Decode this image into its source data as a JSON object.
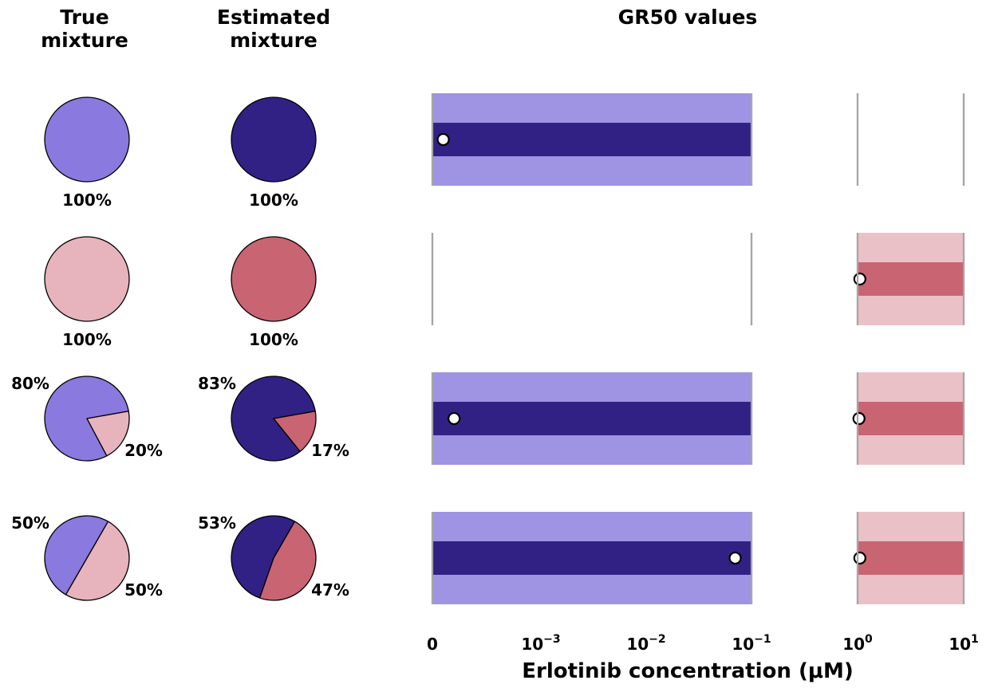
{
  "headers": {
    "true_mixture": [
      "True",
      "mixture"
    ],
    "estimated_mixture": [
      "Estimated",
      "mixture"
    ],
    "gr50": "GR50 values"
  },
  "colors": {
    "cls1_light": "#8a79de",
    "cls1_dark": "#322184",
    "cls1_band": "#9f93e3",
    "cls2_light": "#e7b3bc",
    "cls2_dark": "#c96472",
    "cls2_band": "#ebc1c8",
    "divider": "#a6a6a6"
  },
  "chart_data": {
    "type": "pie+range",
    "xlabel": "Erlotinib concentration (μM)",
    "x_ticks": [
      "0",
      "10^-3",
      "10^-2",
      "10^-1",
      "10^0",
      "10^1"
    ],
    "x_scale": "symlog",
    "rows": [
      {
        "true_mixture": [
          {
            "class": "cls1",
            "pct": 100
          }
        ],
        "true_labels": [
          "100%"
        ],
        "estimated_mixture": [
          {
            "class": "cls1",
            "pct": 100
          }
        ],
        "estimated_labels": [
          "100%"
        ],
        "gr50": [
          {
            "class": "cls1",
            "low": 0,
            "high": 0.1,
            "estimate": 0.0001
          }
        ]
      },
      {
        "true_mixture": [
          {
            "class": "cls2",
            "pct": 100
          }
        ],
        "true_labels": [
          "100%"
        ],
        "estimated_mixture": [
          {
            "class": "cls2",
            "pct": 100
          }
        ],
        "estimated_labels": [
          "100%"
        ],
        "gr50": [
          {
            "class": "cls2",
            "low": 1,
            "high": 10,
            "estimate": 1.05
          }
        ]
      },
      {
        "true_mixture": [
          {
            "class": "cls1",
            "pct": 80
          },
          {
            "class": "cls2",
            "pct": 20
          }
        ],
        "true_labels": [
          "80%",
          "20%"
        ],
        "estimated_mixture": [
          {
            "class": "cls1",
            "pct": 83
          },
          {
            "class": "cls2",
            "pct": 17
          }
        ],
        "estimated_labels": [
          "83%",
          "17%"
        ],
        "gr50": [
          {
            "class": "cls1",
            "low": 0,
            "high": 0.1,
            "estimate": 0.0002
          },
          {
            "class": "cls2",
            "low": 1,
            "high": 10,
            "estimate": 1.03
          }
        ]
      },
      {
        "true_mixture": [
          {
            "class": "cls1",
            "pct": 50
          },
          {
            "class": "cls2",
            "pct": 50
          }
        ],
        "true_labels": [
          "50%",
          "50%"
        ],
        "estimated_mixture": [
          {
            "class": "cls1",
            "pct": 53
          },
          {
            "class": "cls2",
            "pct": 47
          }
        ],
        "estimated_labels": [
          "53%",
          "47%"
        ],
        "gr50": [
          {
            "class": "cls1",
            "low": 0,
            "high": 0.1,
            "estimate": 0.07
          },
          {
            "class": "cls2",
            "low": 1,
            "high": 10,
            "estimate": 1.05
          }
        ]
      }
    ]
  }
}
